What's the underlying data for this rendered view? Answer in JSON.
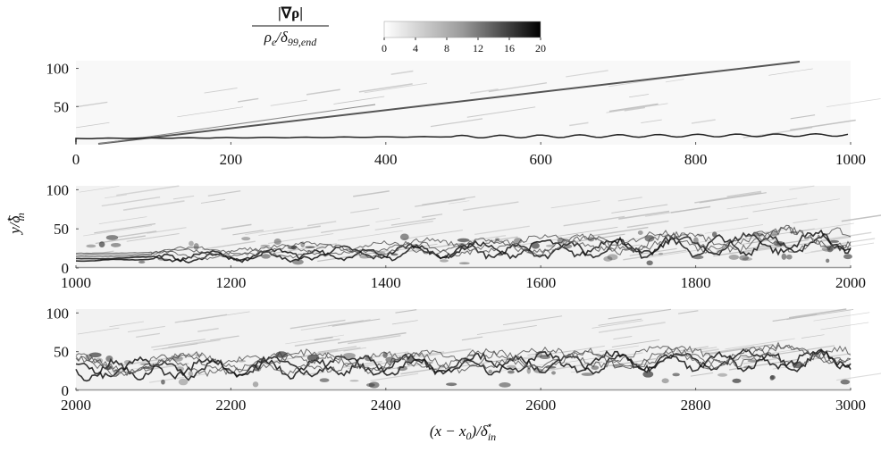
{
  "colorbar": {
    "label_numerator": "|∇ρ|",
    "label_denominator": [
      "ρ",
      "e",
      "/δ",
      "99,end"
    ],
    "lim": [
      0,
      20
    ],
    "ticks": [
      0,
      4,
      8,
      12,
      16,
      20
    ]
  },
  "ylabel": [
    "y/δ",
    "in",
    "⋆"
  ],
  "xlabel": [
    "(x − x",
    "0",
    ")/δ",
    "in",
    "⋆"
  ],
  "chart_data": [
    {
      "type": "image",
      "xlim": [
        0,
        1000
      ],
      "xticks": [
        0,
        200,
        400,
        600,
        800,
        1000
      ],
      "ylim": [
        0,
        110
      ],
      "yticks": [
        50,
        100
      ]
    },
    {
      "type": "image",
      "xlim": [
        1000,
        2000
      ],
      "xticks": [
        1000,
        1200,
        1400,
        1600,
        1800,
        2000
      ],
      "ylim": [
        0,
        105
      ],
      "yticks": [
        0,
        50,
        100
      ]
    },
    {
      "type": "image",
      "xlim": [
        2000,
        3000
      ],
      "xticks": [
        2000,
        2200,
        2400,
        2600,
        2800,
        3000
      ],
      "ylim": [
        0,
        105
      ],
      "yticks": [
        0,
        50,
        100
      ]
    }
  ]
}
